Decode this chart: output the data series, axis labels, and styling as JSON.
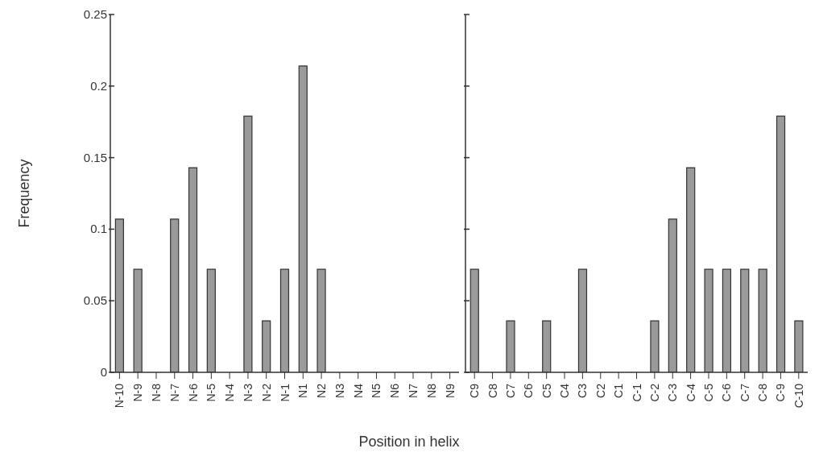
{
  "chart_data": [
    {
      "type": "bar",
      "ylabel": "Frequency",
      "xlabel": "Position in helix",
      "categories": [
        "N-10",
        "N-9",
        "N-8",
        "N-7",
        "N-6",
        "N-5",
        "N-4",
        "N-3",
        "N-2",
        "N-1",
        "N1",
        "N2",
        "N3",
        "N4",
        "N5",
        "N6",
        "N7",
        "N8",
        "N9"
      ],
      "values": [
        0.107,
        0.072,
        0,
        0.107,
        0.143,
        0.072,
        0,
        0.179,
        0.036,
        0.072,
        0.214,
        0.072,
        0,
        0,
        0,
        0,
        0,
        0,
        0
      ],
      "color": "#9a9a9a",
      "ylim": [
        0,
        0.25
      ],
      "yticks": [
        0,
        0.05,
        0.1,
        0.15,
        0.2,
        0.25
      ]
    },
    {
      "type": "bar",
      "categories": [
        "C9",
        "C8",
        "C7",
        "C6",
        "C5",
        "C4",
        "C3",
        "C2",
        "C1",
        "C-1",
        "C-2",
        "C-3",
        "C-4",
        "C-5",
        "C-6",
        "C-7",
        "C-8",
        "C-9",
        "C-10"
      ],
      "values": [
        0.072,
        0,
        0.036,
        0,
        0.036,
        0,
        0.072,
        0,
        0,
        0,
        0.036,
        0.107,
        0.143,
        0.072,
        0.072,
        0.072,
        0.072,
        0.179,
        0.036
      ],
      "color": "#9a9a9a",
      "ylim": [
        0,
        0.25
      ],
      "yticks": [
        0,
        0.05,
        0.1,
        0.15,
        0.2,
        0.25
      ],
      "tick_labels": "x"
    }
  ]
}
